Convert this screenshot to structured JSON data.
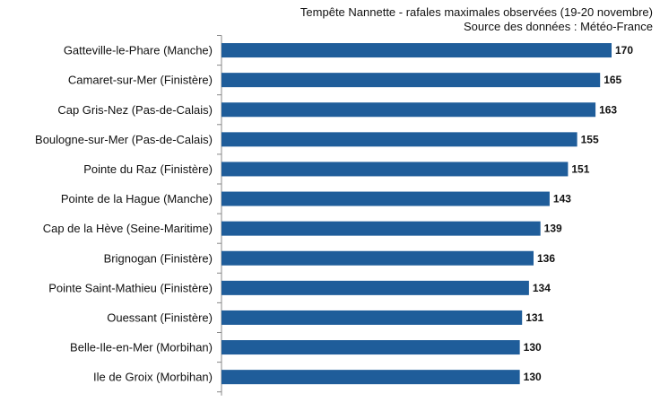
{
  "chart_data": {
    "type": "bar",
    "orientation": "horizontal",
    "title": "Tempête Nannette - rafales maximales observées (19-20 novembre)",
    "subtitle": "Source des données : Météo-France",
    "xlabel": "",
    "ylabel": "",
    "xlim": [
      0,
      180
    ],
    "grid": false,
    "bar_color": "#1f5d9a",
    "categories": [
      "Gatteville-le-Phare (Manche)",
      "Camaret-sur-Mer (Finistère)",
      "Cap Gris-Nez (Pas-de-Calais)",
      "Boulogne-sur-Mer (Pas-de-Calais)",
      "Pointe du Raz (Finistère)",
      "Pointe de la Hague (Manche)",
      "Cap de la Hève (Seine-Maritime)",
      "Brignogan (Finistère)",
      "Pointe Saint-Mathieu (Finistère)",
      "Ouessant (Finistère)",
      "Belle-Ile-en-Mer (Morbihan)",
      "Ile de Groix (Morbihan)"
    ],
    "values": [
      170,
      165,
      163,
      155,
      151,
      143,
      139,
      136,
      134,
      131,
      130,
      130
    ]
  }
}
